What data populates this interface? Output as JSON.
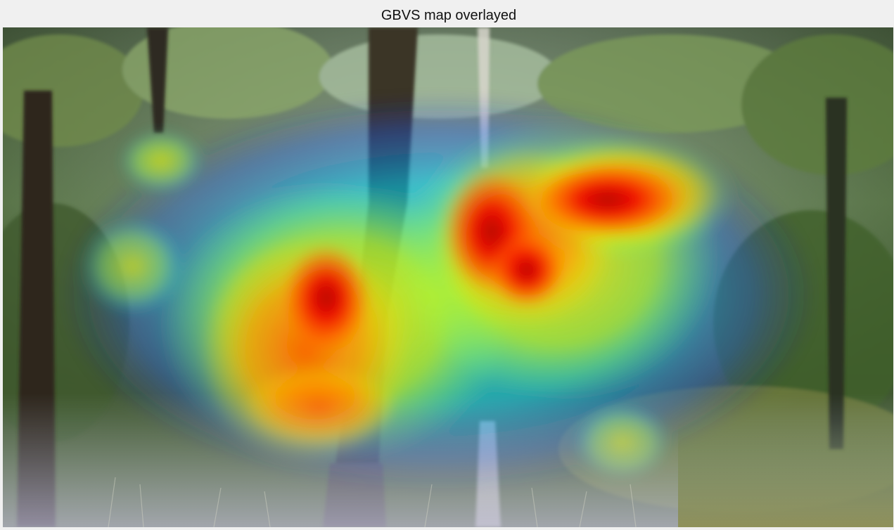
{
  "figure": {
    "title": "GBVS map overlayed",
    "background_color": "#f0f0f0"
  },
  "image": {
    "subject": "forest scene with tree trunks and undergrowth",
    "overlay": "saliency heatmap (jet colormap, semi-transparent)",
    "colormap": [
      "#00007f",
      "#0050ff",
      "#00d4ff",
      "#7dff7a",
      "#ffe600",
      "#ff6a00",
      "#d40000"
    ]
  }
}
